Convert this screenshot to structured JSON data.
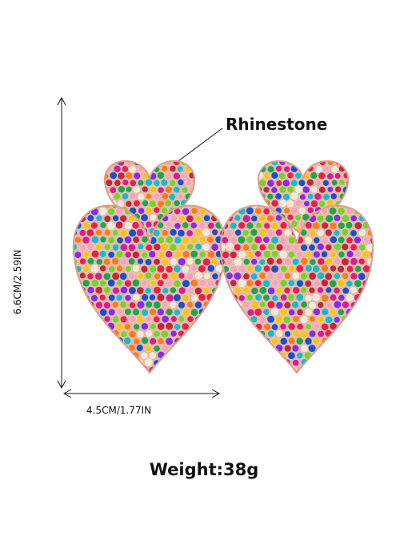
{
  "callout": {
    "label": "Rhinestone"
  },
  "dimensions": {
    "height_label": "6.6CM/2.59IN",
    "width_label": "4.5CM/1.77IN"
  },
  "weight": {
    "label": "Weight:38g"
  },
  "product": {
    "item": "heart-drop-earrings",
    "stone_colors": [
      "#e8204a",
      "#f7c21a",
      "#1e4fc8",
      "#22a548",
      "#8a2be2",
      "#ff7a1a",
      "#f4a6b8",
      "#20b8c8",
      "#d61f8c",
      "#7ccf2e",
      "#f0ead8",
      "#c0283c"
    ],
    "metal_color": "#e6b7a6",
    "line_color": "#111111"
  }
}
